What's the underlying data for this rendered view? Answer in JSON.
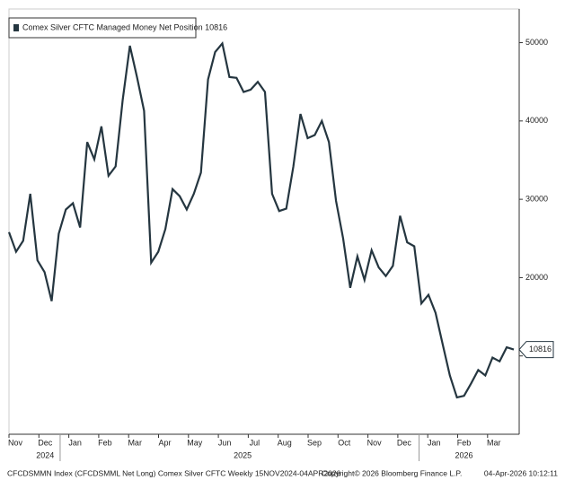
{
  "chart_data": {
    "type": "line",
    "legend": "Comex Silver CFTC Managed Money Net Position 10816",
    "series": [
      {
        "name": "Comex Silver CFTC Managed Money Net Position",
        "color": "#253640",
        "values": [
          25800,
          23300,
          24700,
          30700,
          22200,
          20700,
          17000,
          25600,
          28700,
          29500,
          26400,
          37300,
          35100,
          39300,
          33000,
          34200,
          42700,
          49600,
          45600,
          41300,
          21900,
          23300,
          26200,
          31300,
          30400,
          28700,
          30700,
          33400,
          45300,
          48800,
          49900,
          45600,
          45500,
          43700,
          44000,
          45000,
          43700,
          30700,
          28500,
          28800,
          34200,
          40900,
          37800,
          38200,
          40000,
          37300,
          29800,
          25000,
          18700,
          22700,
          19700,
          23500,
          21300,
          20200,
          21500,
          27900,
          24500,
          24000,
          16700,
          17800,
          15500,
          11500,
          7500,
          4700,
          4900,
          6500,
          8200,
          7500,
          9800,
          9300,
          11100,
          10816
        ]
      }
    ],
    "months": [
      "Nov",
      "Dec",
      "Jan",
      "Feb",
      "Mar",
      "Apr",
      "May",
      "Jun",
      "Jul",
      "Aug",
      "Sep",
      "Oct",
      "Nov",
      "Dec",
      "Jan",
      "Feb",
      "Mar"
    ],
    "years": [
      "2024",
      "2025",
      "2026"
    ],
    "ylim": [
      0,
      54300
    ],
    "yticks": [
      10000,
      20000,
      30000,
      40000,
      50000
    ],
    "footer": {
      "left": "CFCDSMMN Index (CFCDSMML Net Long) Comex Silver CFTC Weekly 15NOV2024-04APR2026",
      "center": "Copyright© 2026 Bloomberg Finance L.P.",
      "right": "04-Apr-2026 10:12:11"
    }
  }
}
